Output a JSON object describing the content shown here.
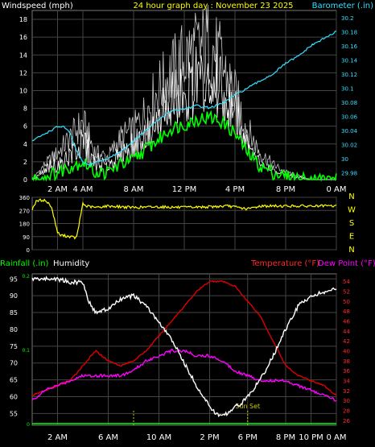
{
  "header": {
    "left": "Windspeed (mph)",
    "center": "24 hour graph day : November 23 2025",
    "right": "Barometer (.in)"
  },
  "legend2": {
    "rainfall": "Rainfall (.in)",
    "humidity": "Humidity",
    "temperature": "Temperature (°F)",
    "dewpoint": "Dew Point (°F)"
  },
  "colors": {
    "wind": "#ffffff",
    "gust_fill": "#c8c8c8",
    "avg_wind": "#00ff00",
    "barometer": "#33e0ff",
    "direction": "#ffff00",
    "temperature": "#dd0000",
    "dewpoint": "#ff00ff",
    "humidity": "#ffffff",
    "rain": "#00ff00",
    "left_axis_text": "#ffffff",
    "right_axis_text_top": "#33e0ff",
    "right_axis_text_bottom": "#ff2a2a",
    "suntext": "#cccc00"
  },
  "chart_data": [
    {
      "type": "line",
      "name": "wind",
      "x_ticks": [
        "2 AM",
        "4 AM",
        "8 AM",
        "12 PM",
        "4 PM",
        "8 PM",
        "0 AM"
      ],
      "x_tick_hours": [
        2,
        4,
        8,
        12,
        16,
        20,
        24
      ],
      "y_left_ticks": [
        "0",
        "2",
        "4",
        "6",
        "8",
        "10",
        "12",
        "14",
        "16",
        "18"
      ],
      "y_left_range": [
        0,
        19
      ],
      "y_right_ticks": [
        "29.98",
        "30",
        "30.02",
        "30.04",
        "30.06",
        "30.08",
        "30.1",
        "30.12",
        "30.14",
        "30.16",
        "30.18",
        "30.2"
      ],
      "y_right_range": [
        29.97,
        30.21
      ],
      "barometer": {
        "hours": [
          0,
          0.5,
          1,
          1.5,
          2,
          2.5,
          3,
          3.5,
          4,
          4.5,
          5,
          6,
          7,
          8,
          9,
          10,
          11,
          12,
          13,
          14,
          15,
          16,
          17,
          18,
          19,
          20,
          21,
          22,
          23,
          24
        ],
        "values": [
          30.025,
          30.03,
          30.035,
          30.04,
          30.045,
          30.045,
          30.035,
          30.01,
          29.995,
          29.99,
          29.995,
          30.0,
          30.01,
          30.025,
          30.04,
          30.055,
          30.068,
          30.07,
          30.075,
          30.072,
          30.078,
          30.09,
          30.1,
          30.11,
          30.12,
          30.135,
          30.145,
          30.16,
          30.17,
          30.18
        ]
      },
      "avg_speed": {
        "hours": [
          0,
          1,
          2,
          3,
          4,
          5,
          6,
          7,
          8,
          9,
          10,
          11,
          12,
          13,
          14,
          15,
          16,
          17,
          18,
          19,
          20,
          21,
          22,
          23,
          24
        ],
        "values": [
          0,
          0.3,
          0.8,
          1.5,
          2,
          0.8,
          0.8,
          1.8,
          2.2,
          3.5,
          4.5,
          5.8,
          6.2,
          6.8,
          7,
          6.5,
          5.2,
          3,
          1.5,
          0.8,
          0.3,
          0.1,
          0,
          0,
          0
        ]
      },
      "gust": {
        "hours": [
          0,
          1,
          2,
          3,
          4,
          5,
          6,
          7,
          8,
          9,
          10,
          11,
          12,
          13,
          14,
          15,
          16,
          17,
          18,
          19,
          20,
          21,
          22,
          23,
          24
        ],
        "values": [
          0,
          2,
          3.5,
          5.5,
          7.5,
          3.5,
          3,
          5.5,
          6.5,
          9,
          12,
          14,
          16,
          17,
          18,
          15,
          11,
          6.5,
          3.5,
          2,
          1,
          0.5,
          0,
          0,
          0
        ]
      }
    },
    {
      "type": "line",
      "name": "wind_direction",
      "y_left_ticks": [
        "360",
        "270",
        "180",
        "90",
        "0"
      ],
      "y_left_range": [
        0,
        360
      ],
      "y_right_labels": [
        "N",
        "W",
        "S",
        "E",
        "N"
      ],
      "hours": [
        0,
        0.3,
        0.6,
        1,
        1.5,
        2,
        2.2,
        3,
        3.5,
        4,
        4.2,
        5,
        6,
        8,
        10,
        12,
        14,
        15.5,
        17,
        18,
        20,
        22,
        24
      ],
      "values": [
        280,
        330,
        340,
        340,
        300,
        120,
        100,
        90,
        80,
        320,
        300,
        290,
        300,
        290,
        295,
        290,
        295,
        300,
        280,
        300,
        300,
        300,
        300
      ]
    },
    {
      "type": "line",
      "name": "temperature_humidity",
      "x_ticks": [
        "2 AM",
        "6 AM",
        "10 AM",
        "2 PM",
        "6 PM",
        "8 PM",
        "10 PM",
        "0 AM"
      ],
      "x_tick_hours": [
        2,
        6,
        10,
        14,
        17,
        20,
        22,
        24
      ],
      "sun_label": "Sun Set",
      "sunset_hour": 17,
      "y_left_ticks": [
        "55",
        "60",
        "65",
        "70",
        "75",
        "80",
        "85",
        "90",
        "95"
      ],
      "y_left_range": [
        51.5,
        96.5
      ],
      "y_right_ticks": [
        "26",
        "28",
        "30",
        "32",
        "34",
        "36",
        "38",
        "40",
        "42",
        "44",
        "46",
        "48",
        "50",
        "52",
        "54"
      ],
      "y_right_range": [
        25,
        55.5
      ],
      "rain_ticks": [
        "0",
        "0.1",
        "0.2"
      ],
      "humidity": {
        "hours": [
          0,
          1,
          2,
          3,
          4,
          4.5,
          5,
          6,
          7,
          8,
          9,
          10,
          11,
          12,
          13,
          14,
          14.5,
          15,
          16,
          16.5,
          17,
          18,
          19,
          20,
          21,
          22,
          23,
          24
        ],
        "values": [
          95,
          95,
          95,
          94,
          94,
          88,
          85,
          86,
          89,
          90,
          87,
          82,
          77,
          70,
          63,
          57,
          55,
          54,
          57,
          58,
          60,
          65,
          72,
          80,
          87,
          90,
          91,
          92
        ]
      },
      "temperature": {
        "hours": [
          0,
          1,
          2,
          3,
          4,
          5,
          6,
          7,
          8,
          9,
          10,
          11,
          12,
          13,
          14,
          15,
          16,
          17,
          18,
          19,
          20,
          21,
          22,
          23,
          24
        ],
        "values": [
          31,
          32,
          33,
          34,
          37,
          40,
          38,
          37,
          38,
          40,
          43,
          46,
          49,
          52,
          54,
          54,
          53,
          50,
          47,
          42,
          37,
          35,
          34,
          33,
          31
        ]
      },
      "dewpoint": {
        "hours": [
          0,
          1,
          2,
          3,
          4,
          5,
          6,
          7,
          8,
          9,
          10,
          11,
          12,
          13,
          14,
          15,
          16,
          17,
          18,
          19,
          20,
          21,
          22,
          23,
          24
        ],
        "values": [
          30,
          32,
          33,
          34,
          35,
          35,
          35,
          35,
          36,
          38,
          39,
          40,
          40,
          39,
          39,
          38,
          36,
          35,
          34,
          34,
          34,
          33,
          32,
          31,
          30
        ]
      }
    }
  ]
}
